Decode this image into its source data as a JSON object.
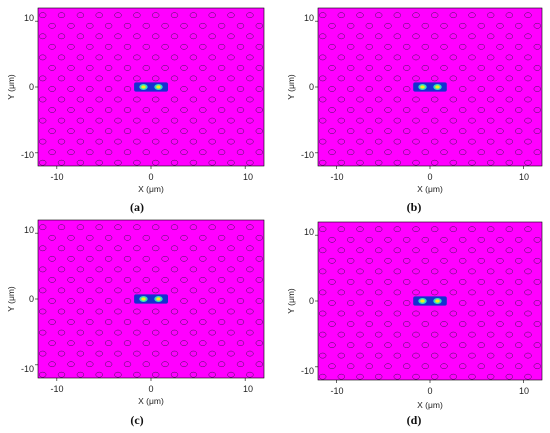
{
  "figure": {
    "panels": [
      {
        "caption": "(a)",
        "xlabel": "X (μm)",
        "ylabel": "Y (μm)",
        "xticks": [
          "-10",
          "0",
          "10"
        ],
        "yticks": [
          "10",
          "0",
          "-10"
        ],
        "spots": [
          -0.8,
          0.8
        ]
      },
      {
        "caption": "(b)",
        "xlabel": "X (μm)",
        "ylabel": "Y (μm)",
        "xticks": [
          "-10",
          "0",
          "10"
        ],
        "yticks": [
          "10",
          "0",
          "-10"
        ],
        "spots": [
          -0.8,
          0.8
        ]
      },
      {
        "caption": "(c)",
        "xlabel": "X (μm)",
        "ylabel": "Y (μm)",
        "xticks": [
          "-10",
          "0",
          "10"
        ],
        "yticks": [
          "10",
          "0",
          "-10"
        ],
        "spots": [
          -0.8,
          0.8
        ]
      },
      {
        "caption": "(d)",
        "xlabel": "X (μm)",
        "ylabel": "Y (μm)",
        "xticks": [
          "-10",
          "0",
          "10"
        ],
        "yticks": [
          "10",
          "0",
          "-10"
        ],
        "spots": [
          -0.8,
          0.8
        ]
      }
    ],
    "colors": {
      "background": "#ff00ff",
      "background_shade": "#f000f0",
      "hole_outline": "#3a1a50",
      "core_blue": "#1530d0",
      "core_cyan": "#30e0c0",
      "core_yellow": "#f0f020",
      "frame": "#000000"
    }
  }
}
